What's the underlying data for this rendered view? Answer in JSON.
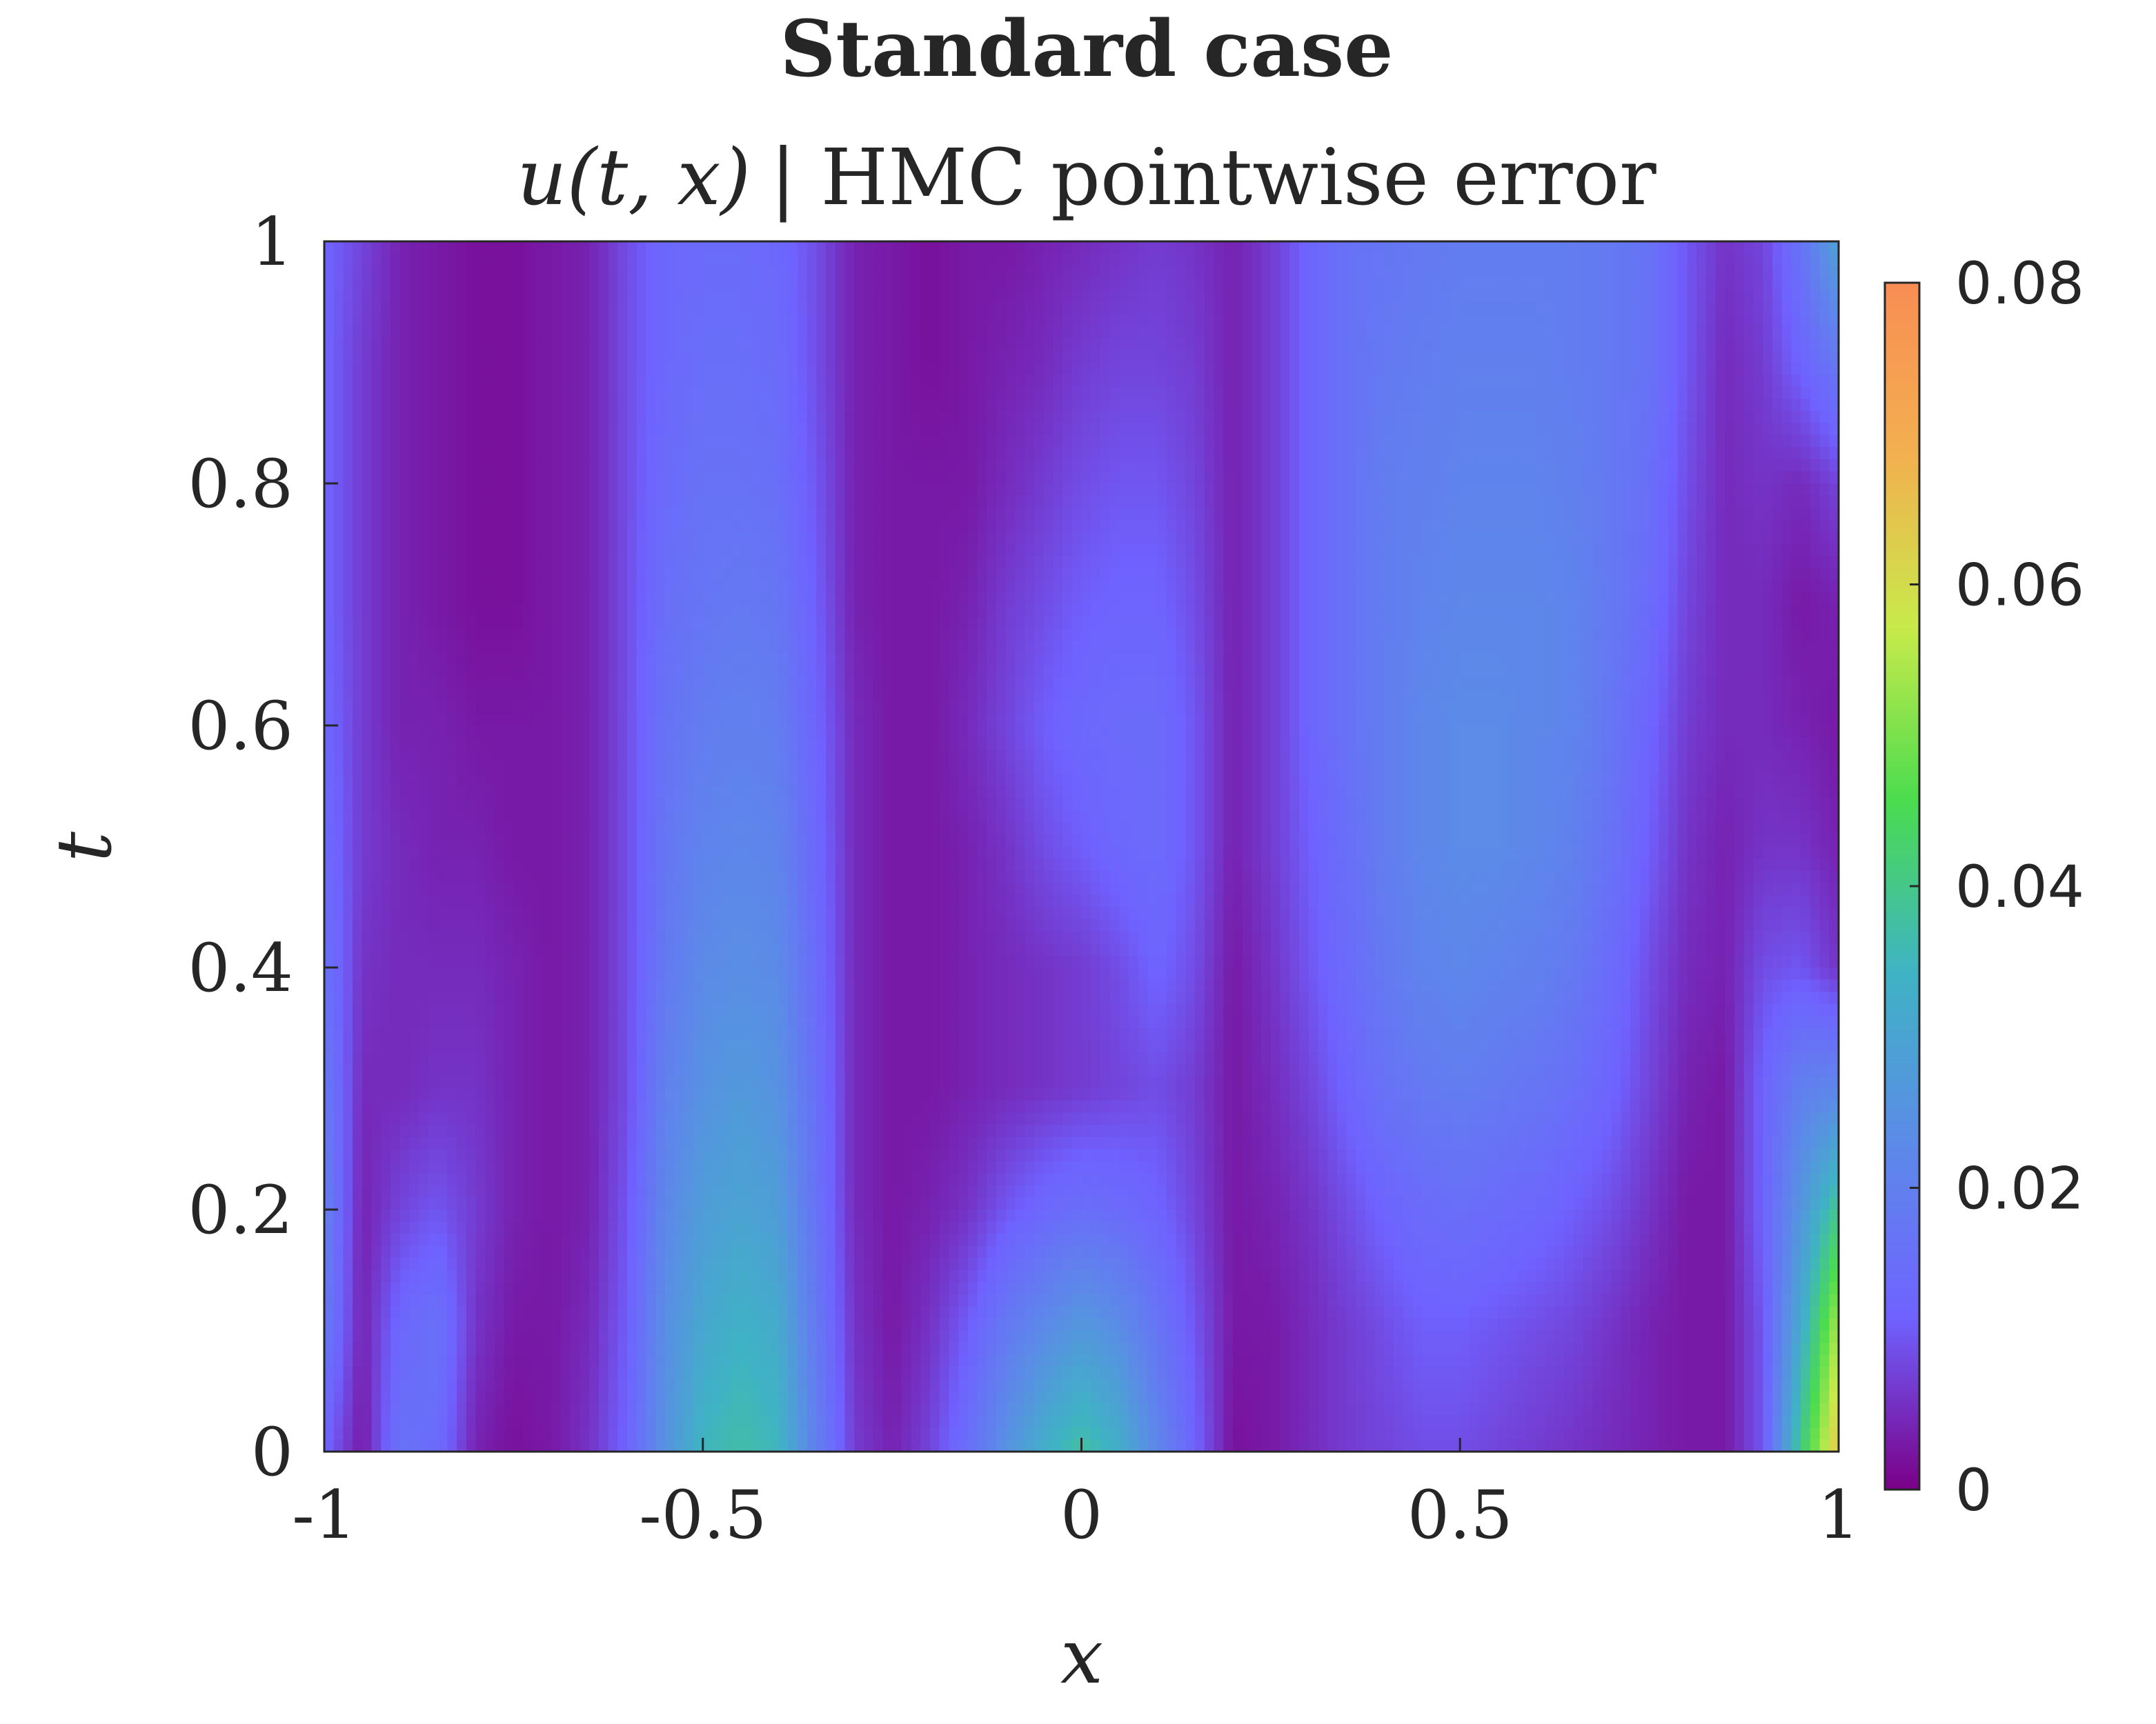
{
  "chart_data": {
    "type": "heatmap",
    "title": "Standard case",
    "subtitle": {
      "math": "u(t, x)",
      "text": "| HMC pointwise error"
    },
    "xlabel": "x",
    "ylabel": "t",
    "xlim": [
      -1,
      1
    ],
    "ylim": [
      0,
      1
    ],
    "x_ticks": [
      -1,
      -0.5,
      0,
      0.5,
      1
    ],
    "x_tick_labels": [
      "-1",
      "-0.5",
      "0",
      "0.5",
      "1"
    ],
    "y_ticks": [
      0,
      0.2,
      0.4,
      0.6,
      0.8,
      1
    ],
    "y_tick_labels": [
      "0",
      "0.2",
      "0.4",
      "0.6",
      "0.8",
      "1"
    ],
    "colorbar": {
      "range": [
        0,
        0.08
      ],
      "ticks": [
        0,
        0.02,
        0.04,
        0.06,
        0.08
      ],
      "tick_labels": [
        "0",
        "0.02",
        "0.04",
        "0.06",
        "0.08"
      ],
      "colors": [
        "#7a0087",
        "#6f62ff",
        "#5c8ae8",
        "#3fb3c4",
        "#4bdc4e",
        "#c8ea4a",
        "#f2b04f",
        "#f98d54"
      ]
    },
    "grid": false,
    "x_samples": [
      -1,
      -0.95,
      -0.9,
      -0.85,
      -0.8,
      -0.75,
      -0.7,
      -0.65,
      -0.6,
      -0.55,
      -0.5,
      -0.45,
      -0.4,
      -0.35,
      -0.3,
      -0.25,
      -0.2,
      -0.15,
      -0.1,
      -0.05,
      0,
      0.05,
      0.1,
      0.15,
      0.2,
      0.25,
      0.3,
      0.35,
      0.4,
      0.45,
      0.5,
      0.55,
      0.6,
      0.65,
      0.7,
      0.75,
      0.8,
      0.85,
      0.9,
      0.95,
      1
    ],
    "t_samples": [
      0,
      0.1,
      0.2,
      0.3,
      0.4,
      0.5,
      0.6,
      0.7,
      0.8,
      0.9,
      1
    ],
    "error_values": [
      [
        0.012,
        0.003,
        0.016,
        0.014,
        0.004,
        0.002,
        0.003,
        0.006,
        0.012,
        0.025,
        0.035,
        0.037,
        0.035,
        0.02,
        0.007,
        0.004,
        0.008,
        0.015,
        0.025,
        0.033,
        0.038,
        0.033,
        0.022,
        0.012,
        0.002,
        0.003,
        0.005,
        0.007,
        0.008,
        0.009,
        0.009,
        0.008,
        0.007,
        0.006,
        0.005,
        0.004,
        0.003,
        0.003,
        0.01,
        0.04,
        0.065
      ],
      [
        0.018,
        0.004,
        0.013,
        0.016,
        0.006,
        0.003,
        0.003,
        0.005,
        0.011,
        0.024,
        0.031,
        0.034,
        0.032,
        0.018,
        0.006,
        0.003,
        0.006,
        0.011,
        0.018,
        0.023,
        0.027,
        0.024,
        0.017,
        0.01,
        0.003,
        0.003,
        0.005,
        0.007,
        0.009,
        0.011,
        0.011,
        0.01,
        0.009,
        0.008,
        0.006,
        0.004,
        0.003,
        0.003,
        0.01,
        0.032,
        0.055
      ],
      [
        0.02,
        0.004,
        0.008,
        0.01,
        0.007,
        0.004,
        0.003,
        0.004,
        0.01,
        0.022,
        0.028,
        0.03,
        0.028,
        0.016,
        0.005,
        0.003,
        0.004,
        0.006,
        0.01,
        0.013,
        0.015,
        0.014,
        0.012,
        0.008,
        0.003,
        0.004,
        0.006,
        0.009,
        0.012,
        0.014,
        0.015,
        0.014,
        0.013,
        0.011,
        0.009,
        0.006,
        0.003,
        0.003,
        0.012,
        0.026,
        0.04
      ],
      [
        0.018,
        0.005,
        0.005,
        0.006,
        0.006,
        0.004,
        0.003,
        0.004,
        0.009,
        0.02,
        0.025,
        0.027,
        0.025,
        0.015,
        0.005,
        0.003,
        0.003,
        0.004,
        0.005,
        0.006,
        0.007,
        0.008,
        0.009,
        0.007,
        0.003,
        0.005,
        0.008,
        0.012,
        0.016,
        0.018,
        0.019,
        0.018,
        0.017,
        0.015,
        0.012,
        0.008,
        0.004,
        0.003,
        0.012,
        0.02,
        0.022
      ],
      [
        0.016,
        0.006,
        0.005,
        0.005,
        0.005,
        0.004,
        0.003,
        0.004,
        0.009,
        0.018,
        0.023,
        0.024,
        0.023,
        0.014,
        0.005,
        0.003,
        0.003,
        0.004,
        0.005,
        0.006,
        0.007,
        0.009,
        0.012,
        0.009,
        0.003,
        0.006,
        0.01,
        0.014,
        0.018,
        0.021,
        0.022,
        0.021,
        0.02,
        0.018,
        0.014,
        0.009,
        0.005,
        0.004,
        0.009,
        0.01,
        0.006
      ],
      [
        0.014,
        0.007,
        0.005,
        0.004,
        0.004,
        0.003,
        0.003,
        0.004,
        0.009,
        0.017,
        0.021,
        0.022,
        0.021,
        0.013,
        0.005,
        0.003,
        0.003,
        0.004,
        0.006,
        0.009,
        0.011,
        0.013,
        0.014,
        0.01,
        0.004,
        0.007,
        0.011,
        0.015,
        0.019,
        0.022,
        0.023,
        0.023,
        0.022,
        0.02,
        0.016,
        0.011,
        0.006,
        0.004,
        0.006,
        0.006,
        0.004
      ],
      [
        0.013,
        0.007,
        0.004,
        0.004,
        0.003,
        0.003,
        0.003,
        0.004,
        0.009,
        0.016,
        0.019,
        0.02,
        0.019,
        0.012,
        0.005,
        0.003,
        0.003,
        0.005,
        0.008,
        0.011,
        0.013,
        0.014,
        0.014,
        0.01,
        0.004,
        0.007,
        0.012,
        0.016,
        0.019,
        0.022,
        0.023,
        0.023,
        0.022,
        0.021,
        0.017,
        0.012,
        0.007,
        0.005,
        0.005,
        0.004,
        0.003
      ],
      [
        0.012,
        0.007,
        0.004,
        0.003,
        0.002,
        0.002,
        0.003,
        0.004,
        0.009,
        0.015,
        0.017,
        0.018,
        0.017,
        0.011,
        0.004,
        0.003,
        0.003,
        0.004,
        0.007,
        0.009,
        0.011,
        0.012,
        0.012,
        0.009,
        0.004,
        0.007,
        0.012,
        0.016,
        0.019,
        0.021,
        0.022,
        0.022,
        0.022,
        0.021,
        0.018,
        0.014,
        0.008,
        0.005,
        0.005,
        0.003,
        0.004
      ],
      [
        0.012,
        0.007,
        0.004,
        0.003,
        0.002,
        0.002,
        0.003,
        0.004,
        0.009,
        0.014,
        0.016,
        0.016,
        0.015,
        0.01,
        0.004,
        0.003,
        0.003,
        0.003,
        0.005,
        0.007,
        0.009,
        0.01,
        0.01,
        0.008,
        0.004,
        0.007,
        0.012,
        0.016,
        0.019,
        0.02,
        0.021,
        0.021,
        0.021,
        0.02,
        0.018,
        0.015,
        0.009,
        0.005,
        0.006,
        0.005,
        0.008
      ],
      [
        0.012,
        0.007,
        0.004,
        0.003,
        0.002,
        0.002,
        0.003,
        0.004,
        0.009,
        0.013,
        0.015,
        0.015,
        0.014,
        0.009,
        0.004,
        0.003,
        0.002,
        0.003,
        0.004,
        0.005,
        0.007,
        0.008,
        0.008,
        0.007,
        0.004,
        0.007,
        0.012,
        0.016,
        0.018,
        0.019,
        0.02,
        0.02,
        0.02,
        0.019,
        0.018,
        0.016,
        0.01,
        0.005,
        0.007,
        0.012,
        0.018
      ],
      [
        0.012,
        0.008,
        0.004,
        0.003,
        0.002,
        0.002,
        0.003,
        0.004,
        0.009,
        0.013,
        0.014,
        0.014,
        0.013,
        0.009,
        0.004,
        0.003,
        0.002,
        0.003,
        0.003,
        0.004,
        0.005,
        0.006,
        0.007,
        0.006,
        0.004,
        0.007,
        0.012,
        0.016,
        0.017,
        0.018,
        0.019,
        0.019,
        0.019,
        0.019,
        0.018,
        0.016,
        0.01,
        0.006,
        0.008,
        0.016,
        0.03
      ]
    ]
  }
}
